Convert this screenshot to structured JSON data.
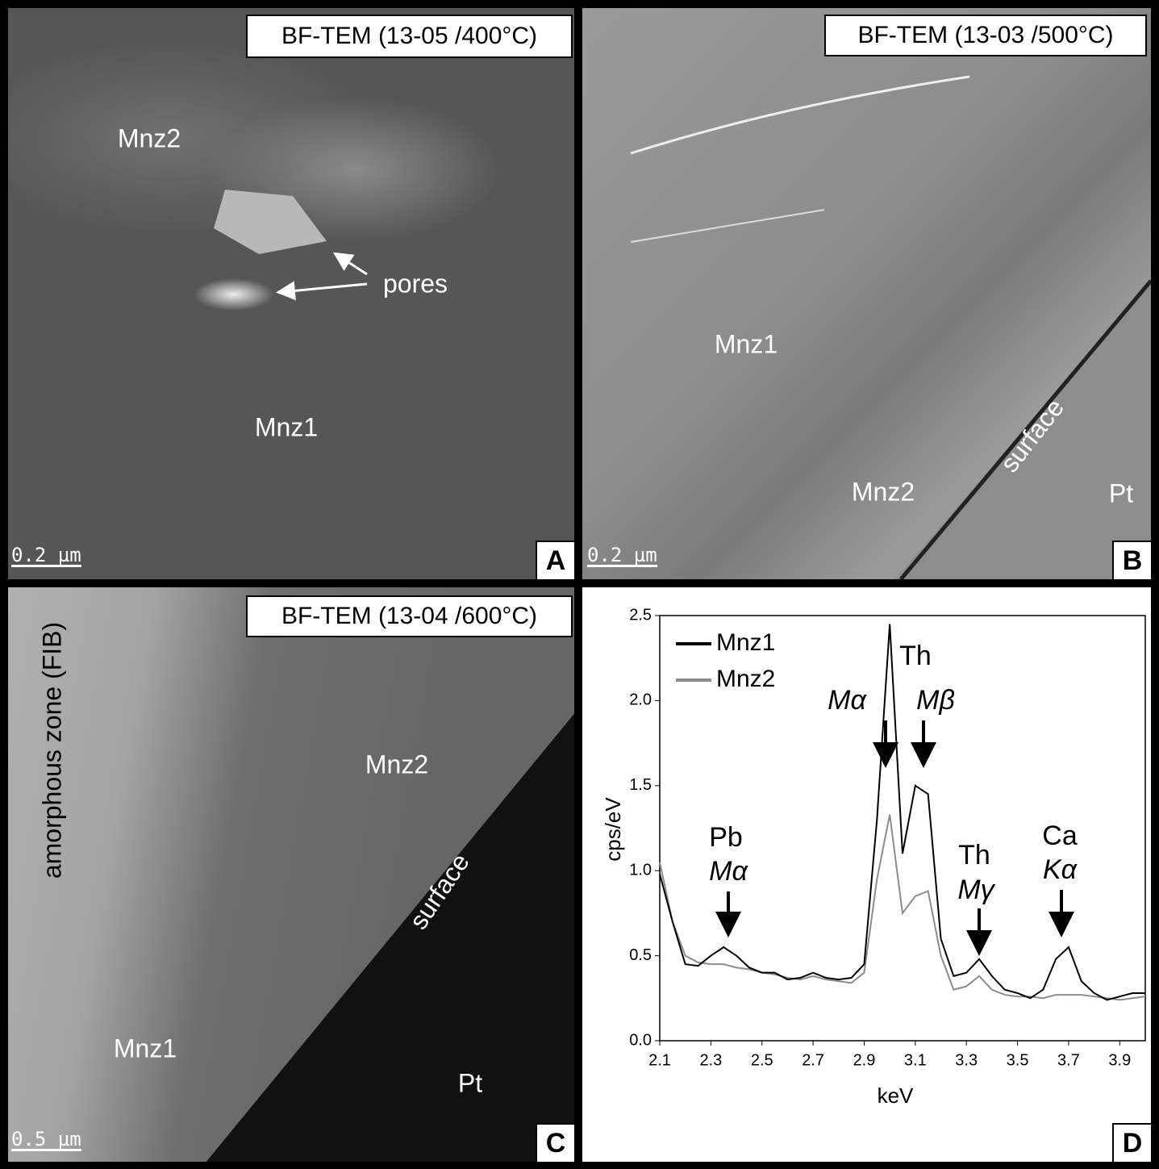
{
  "panels": [
    {
      "label": "A",
      "caption": "BF-TEM (13-05 /400°C)",
      "scale": "0.2 µm",
      "labels": [
        "Mnz2",
        "pores",
        "Mnz1"
      ]
    },
    {
      "label": "B",
      "caption": "BF-TEM (13-03 /500°C)",
      "scale": "0.2 µm",
      "labels": [
        "Mnz1",
        "Mnz2",
        "surface",
        "Pt"
      ]
    },
    {
      "label": "C",
      "caption": "BF-TEM (13-04 /600°C)",
      "scale": "0.5 µm",
      "labels": [
        "amorphous zone (FIB)",
        "Mnz2",
        "surface",
        "Mnz1",
        "Pt"
      ]
    },
    {
      "label": "D"
    }
  ],
  "chart_data": {
    "type": "line",
    "xlabel": "keV",
    "ylabel": "cps/eV",
    "x": [
      2.1,
      2.15,
      2.2,
      2.25,
      2.3,
      2.35,
      2.4,
      2.45,
      2.5,
      2.55,
      2.6,
      2.65,
      2.7,
      2.75,
      2.8,
      2.85,
      2.9,
      2.95,
      3.0,
      3.05,
      3.1,
      3.15,
      3.2,
      3.25,
      3.3,
      3.35,
      3.4,
      3.45,
      3.5,
      3.55,
      3.6,
      3.65,
      3.7,
      3.75,
      3.8,
      3.85,
      3.9,
      3.95,
      4.0
    ],
    "series": [
      {
        "name": "Mnz1",
        "color": "#000000",
        "values": [
          0.98,
          0.7,
          0.45,
          0.44,
          0.5,
          0.55,
          0.5,
          0.43,
          0.4,
          0.4,
          0.36,
          0.37,
          0.4,
          0.37,
          0.36,
          0.37,
          0.45,
          1.3,
          2.45,
          1.1,
          1.5,
          1.45,
          0.6,
          0.38,
          0.4,
          0.48,
          0.38,
          0.3,
          0.28,
          0.25,
          0.3,
          0.48,
          0.55,
          0.35,
          0.28,
          0.24,
          0.26,
          0.28,
          0.28
        ]
      },
      {
        "name": "Mnz2",
        "color": "#8c8c8c",
        "values": [
          1.05,
          0.7,
          0.5,
          0.46,
          0.45,
          0.45,
          0.43,
          0.42,
          0.4,
          0.39,
          0.37,
          0.36,
          0.38,
          0.36,
          0.35,
          0.34,
          0.4,
          0.95,
          1.33,
          0.75,
          0.85,
          0.88,
          0.5,
          0.3,
          0.32,
          0.38,
          0.3,
          0.27,
          0.26,
          0.26,
          0.25,
          0.27,
          0.27,
          0.27,
          0.26,
          0.25,
          0.24,
          0.25,
          0.26
        ]
      }
    ],
    "xlim": [
      2.1,
      4.0
    ],
    "ylim": [
      0,
      2.5
    ],
    "xticks": [
      2.1,
      2.3,
      2.5,
      2.7,
      2.9,
      3.1,
      3.3,
      3.5,
      3.7,
      3.9
    ],
    "yticks": [
      {
        "value": 0,
        "label": "0.0"
      },
      0.5,
      {
        "value": 1,
        "label": "1.0"
      },
      1.5,
      {
        "value": 2,
        "label": "2.0"
      },
      2.5
    ],
    "annotations": [
      "Pb",
      "Mα",
      "Th",
      "Mα",
      "Mβ",
      "Th",
      "Mγ",
      "Ca",
      "Kα"
    ]
  }
}
